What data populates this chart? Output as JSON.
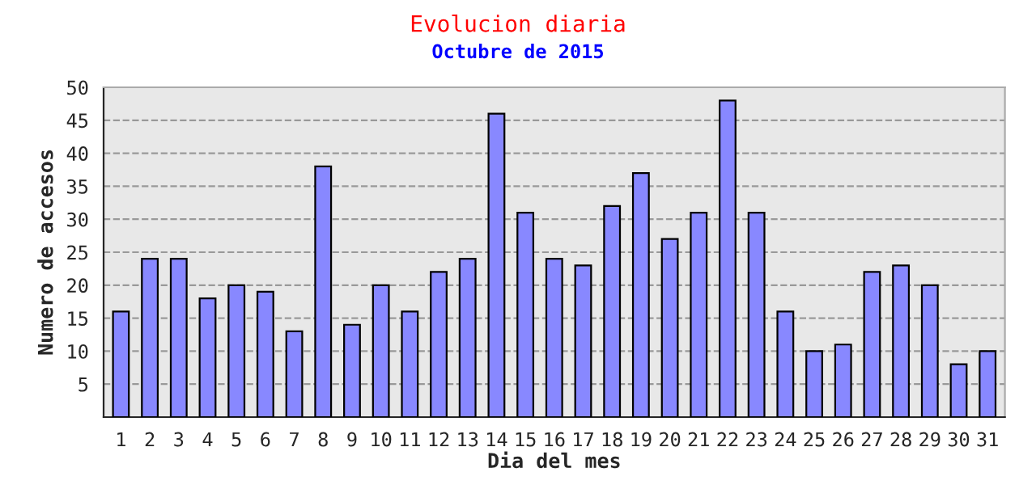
{
  "chart_data": {
    "type": "bar",
    "title": "Evolucion diaria",
    "subtitle": "Octubre de 2015",
    "xlabel": "Dia del mes",
    "ylabel": "Numero de accesos",
    "categories": [
      "1",
      "2",
      "3",
      "4",
      "5",
      "6",
      "7",
      "8",
      "9",
      "10",
      "11",
      "12",
      "13",
      "14",
      "15",
      "16",
      "17",
      "18",
      "19",
      "20",
      "21",
      "22",
      "23",
      "24",
      "25",
      "26",
      "27",
      "28",
      "29",
      "30",
      "31"
    ],
    "values": [
      16,
      24,
      24,
      18,
      20,
      19,
      13,
      38,
      14,
      20,
      16,
      22,
      24,
      46,
      31,
      24,
      23,
      32,
      37,
      27,
      31,
      48,
      31,
      16,
      10,
      11,
      22,
      23,
      20,
      8,
      10
    ],
    "color": "#8888ff",
    "ylim": [
      0,
      50
    ],
    "yticks": [
      5,
      10,
      15,
      20,
      25,
      30,
      35,
      40,
      45,
      50
    ],
    "grid": "y"
  }
}
